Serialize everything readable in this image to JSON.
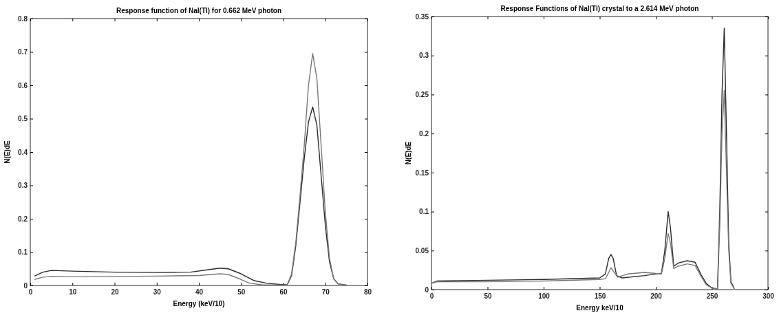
{
  "chart_data": [
    {
      "type": "line",
      "title": "Response function of NaI(Tl) for 0.662 MeV photon",
      "xlabel": "Energy (keV/10)",
      "ylabel": "N(E)dE",
      "xlim": [
        0,
        80
      ],
      "xticks": [
        0,
        10,
        20,
        30,
        40,
        50,
        60,
        70,
        80
      ],
      "ylim": [
        0,
        0.8
      ],
      "yticks": [
        0,
        0.1,
        0.2,
        0.3,
        0.4,
        0.5,
        0.6,
        0.7,
        0.8
      ],
      "grid": false,
      "series": [
        {
          "color": "#2a2a2a",
          "x": [
            1,
            3,
            5,
            10,
            20,
            30,
            38,
            42,
            45,
            47,
            50,
            53,
            56,
            60,
            61,
            62,
            63,
            64,
            65,
            66,
            67,
            68,
            69,
            70,
            71,
            72,
            73,
            75
          ],
          "values": [
            0.028,
            0.04,
            0.045,
            0.043,
            0.04,
            0.039,
            0.04,
            0.047,
            0.052,
            0.05,
            0.035,
            0.015,
            0.007,
            0.002,
            0.003,
            0.03,
            0.12,
            0.25,
            0.38,
            0.49,
            0.535,
            0.48,
            0.33,
            0.18,
            0.07,
            0.02,
            0.005,
            0.001
          ]
        },
        {
          "color": "#777777",
          "x": [
            1,
            3,
            5,
            10,
            20,
            30,
            40,
            45,
            47,
            50,
            52,
            55,
            60,
            61,
            62,
            63,
            64,
            65,
            66,
            67,
            68,
            69,
            70,
            71,
            72,
            73,
            75
          ],
          "values": [
            0.018,
            0.025,
            0.027,
            0.026,
            0.027,
            0.028,
            0.03,
            0.035,
            0.033,
            0.018,
            0.007,
            0.002,
            0.001,
            0.003,
            0.035,
            0.13,
            0.27,
            0.42,
            0.6,
            0.695,
            0.62,
            0.42,
            0.22,
            0.08,
            0.02,
            0.005,
            0.001
          ]
        }
      ]
    },
    {
      "type": "line",
      "title": "Response Functions of NaI(Tl) crystal to a 2.614 MeV photon",
      "xlabel": "Energy keV/10",
      "ylabel": "N(E)dE",
      "xlim": [
        0,
        300
      ],
      "xticks": [
        0,
        50,
        100,
        150,
        200,
        250,
        300
      ],
      "ylim": [
        0,
        0.35
      ],
      "yticks": [
        0,
        0.05,
        0.1,
        0.15,
        0.2,
        0.25,
        0.3,
        0.35
      ],
      "grid": false,
      "series": [
        {
          "color": "#2a2a2a",
          "x": [
            0,
            5,
            50,
            100,
            150,
            155,
            158,
            160,
            162,
            165,
            170,
            190,
            205,
            208,
            211,
            213,
            216,
            220,
            228,
            235,
            240,
            245,
            250,
            255,
            257,
            259,
            261,
            263,
            265,
            267,
            270
          ],
          "values": [
            0.008,
            0.011,
            0.012,
            0.013,
            0.015,
            0.02,
            0.04,
            0.045,
            0.04,
            0.018,
            0.015,
            0.018,
            0.021,
            0.05,
            0.1,
            0.08,
            0.03,
            0.034,
            0.037,
            0.035,
            0.02,
            0.008,
            0.002,
            0.001,
            0.1,
            0.25,
            0.335,
            0.2,
            0.06,
            0.01,
            0.001
          ]
        },
        {
          "color": "#777777",
          "x": [
            0,
            5,
            50,
            100,
            150,
            155,
            158,
            160,
            163,
            166,
            175,
            190,
            205,
            208,
            211,
            213,
            216,
            220,
            228,
            235,
            240,
            245,
            250,
            255,
            257,
            259,
            261,
            263,
            265,
            267,
            270
          ],
          "values": [
            0.008,
            0.01,
            0.01,
            0.011,
            0.013,
            0.014,
            0.022,
            0.028,
            0.022,
            0.016,
            0.02,
            0.022,
            0.02,
            0.04,
            0.072,
            0.06,
            0.027,
            0.03,
            0.033,
            0.031,
            0.018,
            0.006,
            0.002,
            0.001,
            0.08,
            0.2,
            0.255,
            0.15,
            0.05,
            0.008,
            0.001
          ]
        }
      ]
    }
  ]
}
